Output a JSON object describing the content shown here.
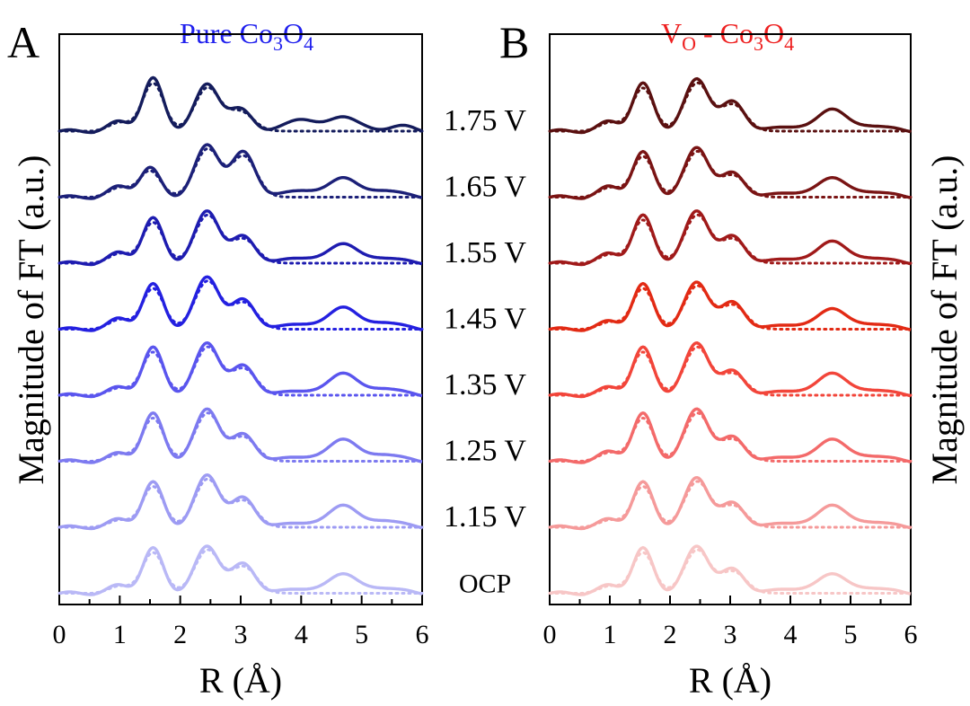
{
  "chart_data": [
    {
      "type": "line",
      "panel_label": "A",
      "title_parts": {
        "pre": "Pure Co",
        "sub1": "3",
        "mid": "O",
        "sub2": "4"
      },
      "xlabel": "R (Å)",
      "ylabel": "Magnitude of FT (a.u.)",
      "xlim": [
        0,
        6
      ],
      "x_ticks": [
        "0",
        "1",
        "2",
        "3",
        "4",
        "5",
        "6"
      ],
      "y_ticks_shown": false,
      "line_styles": {
        "experimental": "solid",
        "fit": "dotted"
      },
      "series": [
        {
          "label": "1.75 V",
          "color": "#141c5c",
          "peaks": [
            [
              1.0,
              0.18
            ],
            [
              1.55,
              1.0
            ],
            [
              2.45,
              0.9
            ],
            [
              3.0,
              0.4
            ],
            [
              4.0,
              0.25
            ],
            [
              4.7,
              0.3
            ],
            [
              5.6,
              0.1
            ]
          ]
        },
        {
          "label": "1.65 V",
          "color": "#1c2078",
          "peaks": [
            [
              1.0,
              0.2
            ],
            [
              1.5,
              0.55
            ],
            [
              2.45,
              1.0
            ],
            [
              3.05,
              0.85
            ],
            [
              4.0,
              0.15
            ],
            [
              4.7,
              0.4
            ],
            [
              5.4,
              0.15
            ]
          ]
        },
        {
          "label": "1.55 V",
          "color": "#1e1cb0",
          "peaks": [
            [
              1.0,
              0.2
            ],
            [
              1.55,
              0.85
            ],
            [
              2.45,
              1.0
            ],
            [
              3.05,
              0.5
            ],
            [
              4.0,
              0.12
            ],
            [
              4.7,
              0.4
            ],
            [
              5.4,
              0.12
            ]
          ]
        },
        {
          "label": "1.45 V",
          "color": "#2420e0",
          "peaks": [
            [
              1.0,
              0.2
            ],
            [
              1.55,
              0.85
            ],
            [
              2.45,
              1.0
            ],
            [
              3.05,
              0.55
            ],
            [
              4.0,
              0.12
            ],
            [
              4.7,
              0.45
            ],
            [
              5.4,
              0.15
            ]
          ]
        },
        {
          "label": "1.35 V",
          "color": "#5a55ee",
          "peaks": [
            [
              1.0,
              0.15
            ],
            [
              1.55,
              0.9
            ],
            [
              2.45,
              1.0
            ],
            [
              3.05,
              0.55
            ],
            [
              4.0,
              0.1
            ],
            [
              4.7,
              0.45
            ],
            [
              5.4,
              0.15
            ]
          ]
        },
        {
          "label": "1.25 V",
          "color": "#7d7af0",
          "peaks": [
            [
              1.0,
              0.15
            ],
            [
              1.55,
              0.9
            ],
            [
              2.45,
              1.0
            ],
            [
              3.05,
              0.5
            ],
            [
              4.0,
              0.1
            ],
            [
              4.7,
              0.45
            ],
            [
              5.4,
              0.15
            ]
          ]
        },
        {
          "label": "1.15 V",
          "color": "#9d9bf3",
          "peaks": [
            [
              1.0,
              0.15
            ],
            [
              1.55,
              0.85
            ],
            [
              2.45,
              1.0
            ],
            [
              3.05,
              0.55
            ],
            [
              4.0,
              0.1
            ],
            [
              4.7,
              0.45
            ],
            [
              5.4,
              0.15
            ]
          ]
        },
        {
          "label": "OCP",
          "color": "#b9b8f6",
          "peaks": [
            [
              1.0,
              0.15
            ],
            [
              1.55,
              0.85
            ],
            [
              2.45,
              0.9
            ],
            [
              3.05,
              0.55
            ],
            [
              4.0,
              0.1
            ],
            [
              4.7,
              0.4
            ],
            [
              5.4,
              0.12
            ]
          ]
        }
      ]
    },
    {
      "type": "line",
      "panel_label": "B",
      "title_parts": {
        "pre": "V",
        "sub1": "O",
        "mid": " - Co",
        "sub2": "3",
        "post": "O",
        "sub3": "4"
      },
      "xlabel": "R (Å)",
      "ylabel": "Magnitude of FT (a.u.)",
      "xlim": [
        0,
        6
      ],
      "x_ticks": [
        "0",
        "1",
        "2",
        "3",
        "4",
        "5",
        "6"
      ],
      "y_ticks_shown": false,
      "line_styles": {
        "experimental": "solid",
        "fit": "dotted"
      },
      "series": [
        {
          "label": "1.75 V",
          "color": "#5a1010",
          "peaks": [
            [
              1.0,
              0.18
            ],
            [
              1.55,
              0.9
            ],
            [
              2.45,
              1.0
            ],
            [
              3.05,
              0.55
            ],
            [
              4.0,
              0.1
            ],
            [
              4.7,
              0.45
            ],
            [
              5.4,
              0.12
            ]
          ]
        },
        {
          "label": "1.65 V",
          "color": "#7a1414",
          "peaks": [
            [
              1.0,
              0.2
            ],
            [
              1.55,
              0.85
            ],
            [
              2.45,
              0.95
            ],
            [
              3.05,
              0.45
            ],
            [
              4.0,
              0.1
            ],
            [
              4.7,
              0.4
            ],
            [
              5.4,
              0.12
            ]
          ]
        },
        {
          "label": "1.55 V",
          "color": "#a01a1a",
          "peaks": [
            [
              1.0,
              0.18
            ],
            [
              1.55,
              0.9
            ],
            [
              2.45,
              1.0
            ],
            [
              3.05,
              0.5
            ],
            [
              4.0,
              0.1
            ],
            [
              4.7,
              0.45
            ],
            [
              5.4,
              0.12
            ]
          ]
        },
        {
          "label": "1.45 V",
          "color": "#e22a14",
          "peaks": [
            [
              1.0,
              0.15
            ],
            [
              1.55,
              0.85
            ],
            [
              2.45,
              0.9
            ],
            [
              3.05,
              0.5
            ],
            [
              4.0,
              0.1
            ],
            [
              4.7,
              0.42
            ],
            [
              5.4,
              0.12
            ]
          ]
        },
        {
          "label": "1.35 V",
          "color": "#f2453a",
          "peaks": [
            [
              1.0,
              0.15
            ],
            [
              1.55,
              0.9
            ],
            [
              2.45,
              1.0
            ],
            [
              3.05,
              0.45
            ],
            [
              4.0,
              0.1
            ],
            [
              4.7,
              0.45
            ],
            [
              5.4,
              0.12
            ]
          ]
        },
        {
          "label": "1.25 V",
          "color": "#f36a6a",
          "peaks": [
            [
              1.0,
              0.18
            ],
            [
              1.55,
              0.9
            ],
            [
              2.45,
              1.0
            ],
            [
              3.05,
              0.45
            ],
            [
              4.0,
              0.1
            ],
            [
              4.7,
              0.45
            ],
            [
              5.4,
              0.12
            ]
          ]
        },
        {
          "label": "1.15 V",
          "color": "#f59a9a",
          "peaks": [
            [
              1.0,
              0.15
            ],
            [
              1.55,
              0.85
            ],
            [
              2.45,
              0.95
            ],
            [
              3.05,
              0.45
            ],
            [
              4.0,
              0.1
            ],
            [
              4.7,
              0.45
            ],
            [
              5.4,
              0.12
            ]
          ]
        },
        {
          "label": "OCP",
          "color": "#f7c6c6",
          "peaks": [
            [
              1.0,
              0.15
            ],
            [
              1.55,
              0.85
            ],
            [
              2.45,
              0.9
            ],
            [
              3.05,
              0.45
            ],
            [
              4.0,
              0.1
            ],
            [
              4.7,
              0.4
            ],
            [
              5.4,
              0.12
            ]
          ]
        }
      ]
    }
  ]
}
